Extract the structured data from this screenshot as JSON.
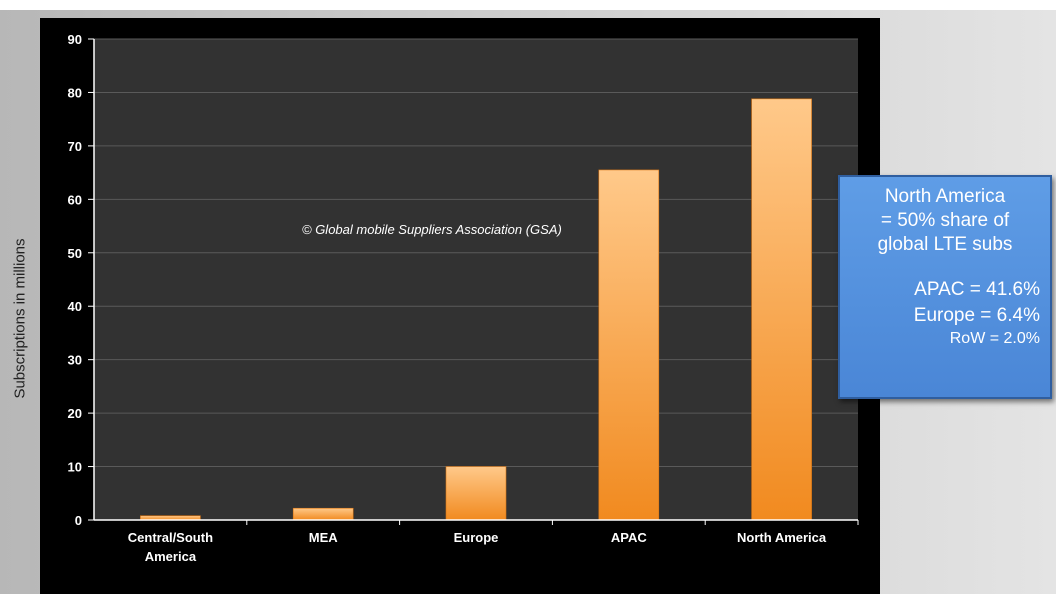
{
  "chart_data": {
    "type": "bar",
    "categories": [
      [
        "Central/South",
        "America"
      ],
      [
        "MEA"
      ],
      [
        "Europe"
      ],
      [
        "APAC"
      ],
      [
        "North America"
      ]
    ],
    "values": [
      0.8,
      2.2,
      10,
      65.5,
      78.8
    ],
    "ylabel": "Subscriptions in millions",
    "ylim": [
      0,
      90
    ],
    "yticks": [
      0,
      10,
      20,
      30,
      40,
      50,
      60,
      70,
      80,
      90
    ],
    "grid": true,
    "annotation": "© Global mobile Suppliers Association (GSA)",
    "colors": {
      "bar_light": "#ffc98a",
      "bar_dark": "#f18a1f",
      "background": "#000000",
      "plot_background": "#323232",
      "grid": "#5a5a5a"
    }
  },
  "callout": {
    "lines_top": [
      "North America",
      "= 50% share of",
      "global LTE subs"
    ],
    "lines_right": [
      "APAC = 41.6%",
      "Europe = 6.4%"
    ],
    "line_small": "RoW = 2.0%",
    "color": "#4f8ddc"
  }
}
